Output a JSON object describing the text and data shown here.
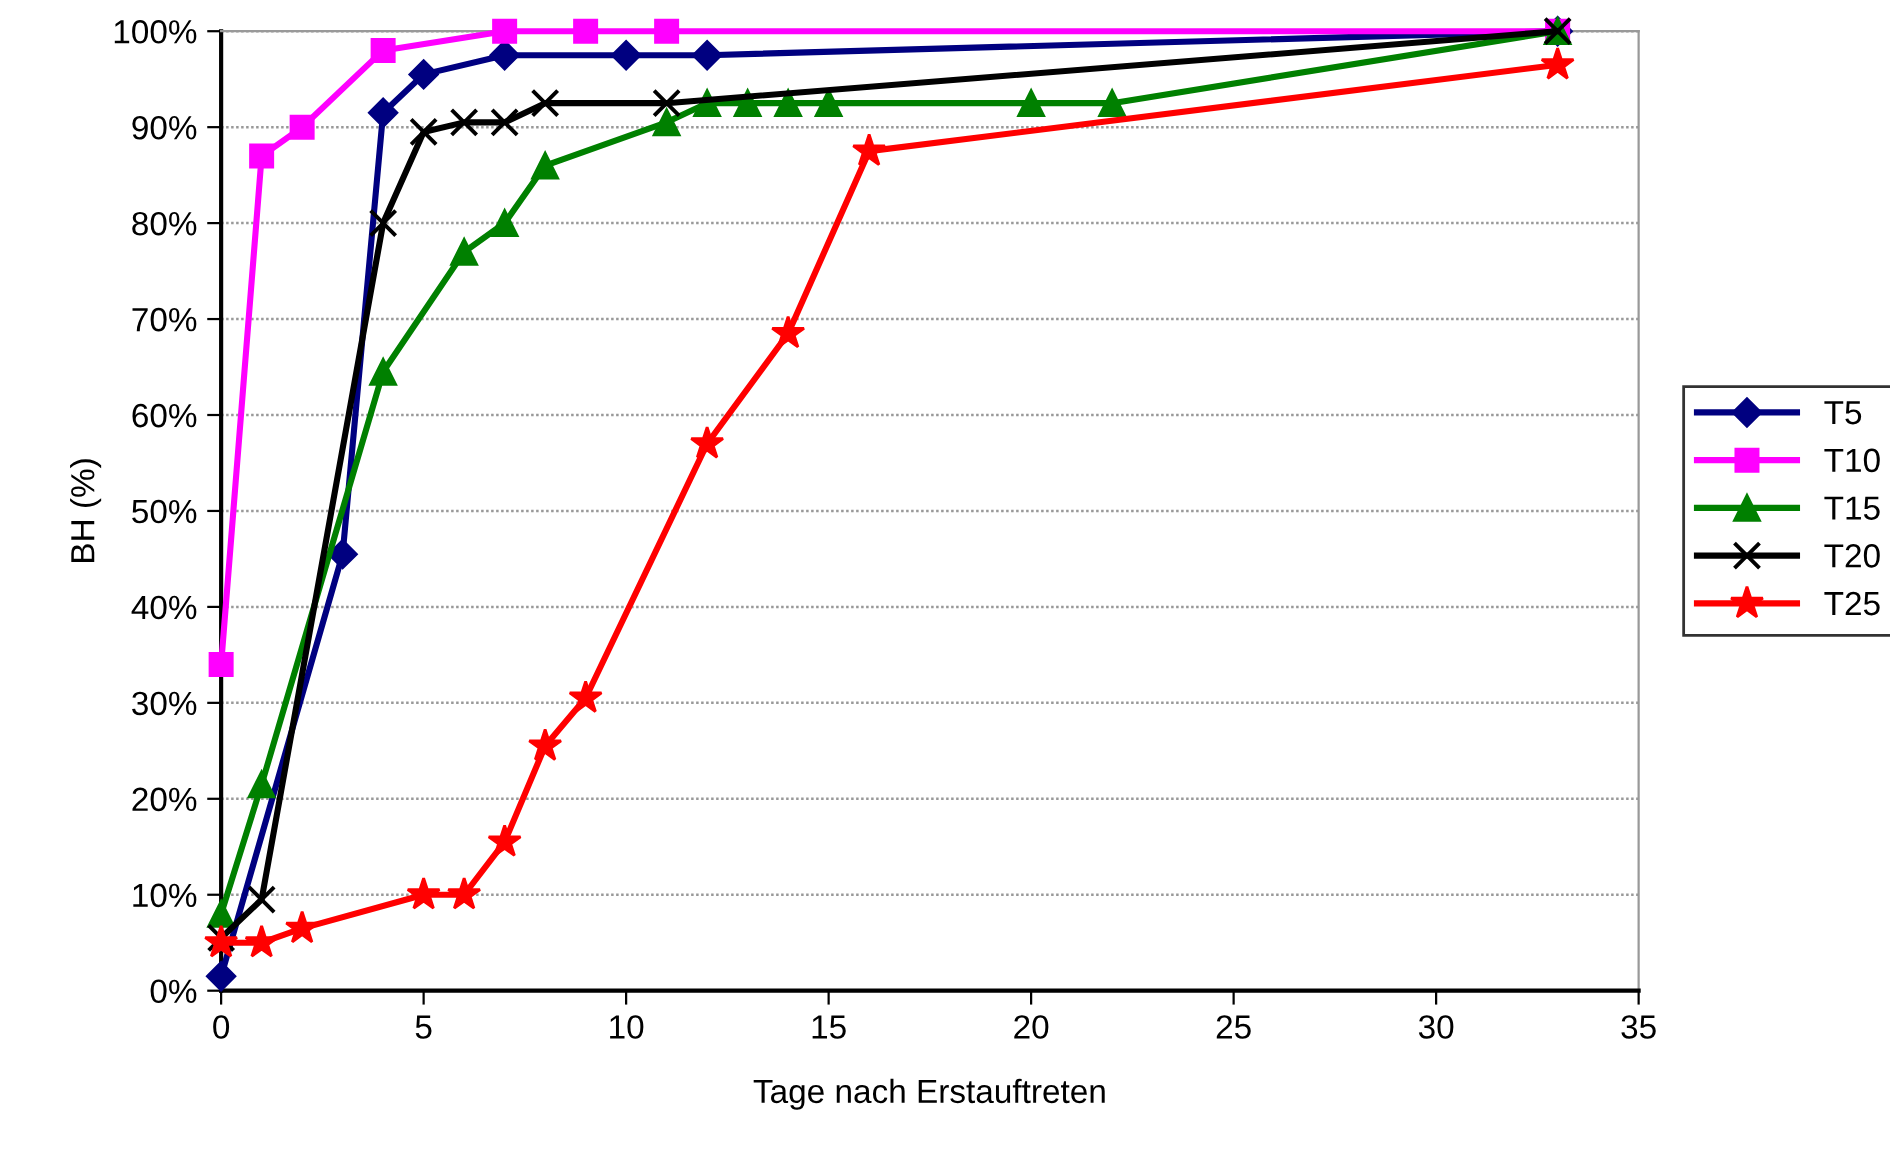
{
  "chart_data": {
    "type": "line",
    "xlabel": "Tage nach Erstauftreten",
    "ylabel": "BH (%)",
    "xlim": [
      0,
      35
    ],
    "xticks": [
      0,
      5,
      10,
      15,
      20,
      25,
      30,
      35
    ],
    "ylim": [
      0,
      100
    ],
    "yticks": [
      {
        "value": 0,
        "label": "0%"
      },
      {
        "value": 10,
        "label": "10%"
      },
      {
        "value": 20,
        "label": "20%"
      },
      {
        "value": 30,
        "label": "30%"
      },
      {
        "value": 40,
        "label": "40%"
      },
      {
        "value": 50,
        "label": "50%"
      },
      {
        "value": 60,
        "label": "60%"
      },
      {
        "value": 70,
        "label": "70%"
      },
      {
        "value": 80,
        "label": "80%"
      },
      {
        "value": 90,
        "label": "90%"
      },
      {
        "value": 100,
        "label": "100%"
      }
    ],
    "grid": "y",
    "legend": "right",
    "line_style": "solid",
    "series": [
      {
        "name": "T5",
        "color": "#000080",
        "marker": "diamond",
        "x": [
          0,
          3,
          4,
          5,
          7,
          10,
          12,
          33
        ],
        "values": [
          1.5,
          45.5,
          91.5,
          95.5,
          97.5,
          97.5,
          97.5,
          100
        ]
      },
      {
        "name": "T10",
        "color": "#ff00ff",
        "marker": "square",
        "x": [
          0,
          1,
          2,
          4,
          7,
          9,
          11,
          33
        ],
        "values": [
          34,
          87,
          90,
          98,
          100,
          100,
          100,
          100
        ]
      },
      {
        "name": "T15",
        "color": "#008000",
        "marker": "triangle",
        "x": [
          0,
          1,
          4,
          6,
          7,
          8,
          11,
          12,
          13,
          14,
          15,
          20,
          22,
          33
        ],
        "values": [
          8,
          21.5,
          64.5,
          77,
          80,
          86,
          90.5,
          92.5,
          92.5,
          92.5,
          92.5,
          92.5,
          92.5,
          100
        ]
      },
      {
        "name": "T20",
        "color": "#000000",
        "marker": "cross",
        "x": [
          0,
          1,
          4,
          5,
          6,
          7,
          8,
          11,
          33
        ],
        "values": [
          5.5,
          9.5,
          80,
          89.5,
          90.5,
          90.5,
          92.5,
          92.5,
          100
        ]
      },
      {
        "name": "T25",
        "color": "#ff0000",
        "marker": "star",
        "x": [
          0,
          1,
          2,
          5,
          6,
          7,
          8,
          9,
          12,
          14,
          16,
          33
        ],
        "values": [
          5,
          5,
          6.5,
          10,
          10,
          15.5,
          25.5,
          30.5,
          57,
          68.5,
          87.5,
          96.5
        ]
      }
    ]
  }
}
